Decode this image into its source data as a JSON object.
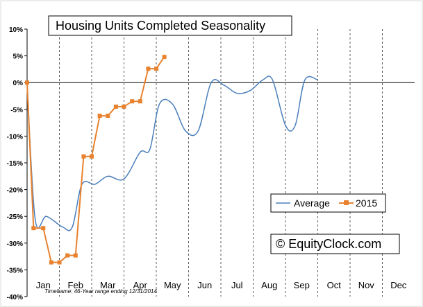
{
  "chart_data": {
    "type": "line",
    "title": "Housing Units Completed Seasonality",
    "xlabel": "",
    "ylabel": "",
    "ylim": [
      -40,
      10
    ],
    "yticks": [
      "10%",
      "5%",
      "0%",
      "-5%",
      "-10%",
      "-15%",
      "-20%",
      "-25%",
      "-30%",
      "-35%",
      "-40%"
    ],
    "categories": [
      "Jan",
      "Feb",
      "Mar",
      "Apr",
      "May",
      "Jun",
      "Jul",
      "Aug",
      "Sep",
      "Oct",
      "Nov",
      "Dec"
    ],
    "grid": "vertical dashed lines at month boundaries; solid zero line",
    "legend_position": "right-middle",
    "series": [
      {
        "name": "Average",
        "color": "#4a7ebb",
        "points": [
          [
            0,
            0
          ],
          [
            0.25,
            -25.5
          ],
          [
            0.6,
            -25
          ],
          [
            1.1,
            -27
          ],
          [
            1.4,
            -27
          ],
          [
            1.7,
            -19
          ],
          [
            2.1,
            -19
          ],
          [
            2.5,
            -17.5
          ],
          [
            3.0,
            -18
          ],
          [
            3.5,
            -13
          ],
          [
            3.8,
            -12.5
          ],
          [
            4.1,
            -4
          ],
          [
            4.5,
            -4
          ],
          [
            4.9,
            -9
          ],
          [
            5.3,
            -9
          ],
          [
            5.7,
            0
          ],
          [
            6.1,
            -0.5
          ],
          [
            6.5,
            -2
          ],
          [
            6.9,
            -1.5
          ],
          [
            7.3,
            0.5
          ],
          [
            7.6,
            0.5
          ],
          [
            8.0,
            -8
          ],
          [
            8.3,
            -8
          ],
          [
            8.6,
            0.5
          ],
          [
            9.0,
            0.5
          ]
        ]
      },
      {
        "name": "2015",
        "color": "#e8822e",
        "marker": "square",
        "points": [
          [
            0,
            0
          ],
          [
            0.2,
            -27.2
          ],
          [
            0.5,
            -27.2
          ],
          [
            0.75,
            -33.6
          ],
          [
            1.0,
            -33.6
          ],
          [
            1.25,
            -32.3
          ],
          [
            1.5,
            -32.3
          ],
          [
            1.75,
            -13.8
          ],
          [
            2.0,
            -13.8
          ],
          [
            2.25,
            -6.2
          ],
          [
            2.5,
            -6.2
          ],
          [
            2.75,
            -4.5
          ],
          [
            3.0,
            -4.5
          ],
          [
            3.25,
            -3.5
          ],
          [
            3.5,
            -3.5
          ],
          [
            3.75,
            2.6
          ],
          [
            4.0,
            2.6
          ],
          [
            4.25,
            4.8
          ]
        ]
      }
    ],
    "footnote": "Timeframe: 46-Year range ending 12/31/2014",
    "brand": "© EquityClock.com"
  }
}
